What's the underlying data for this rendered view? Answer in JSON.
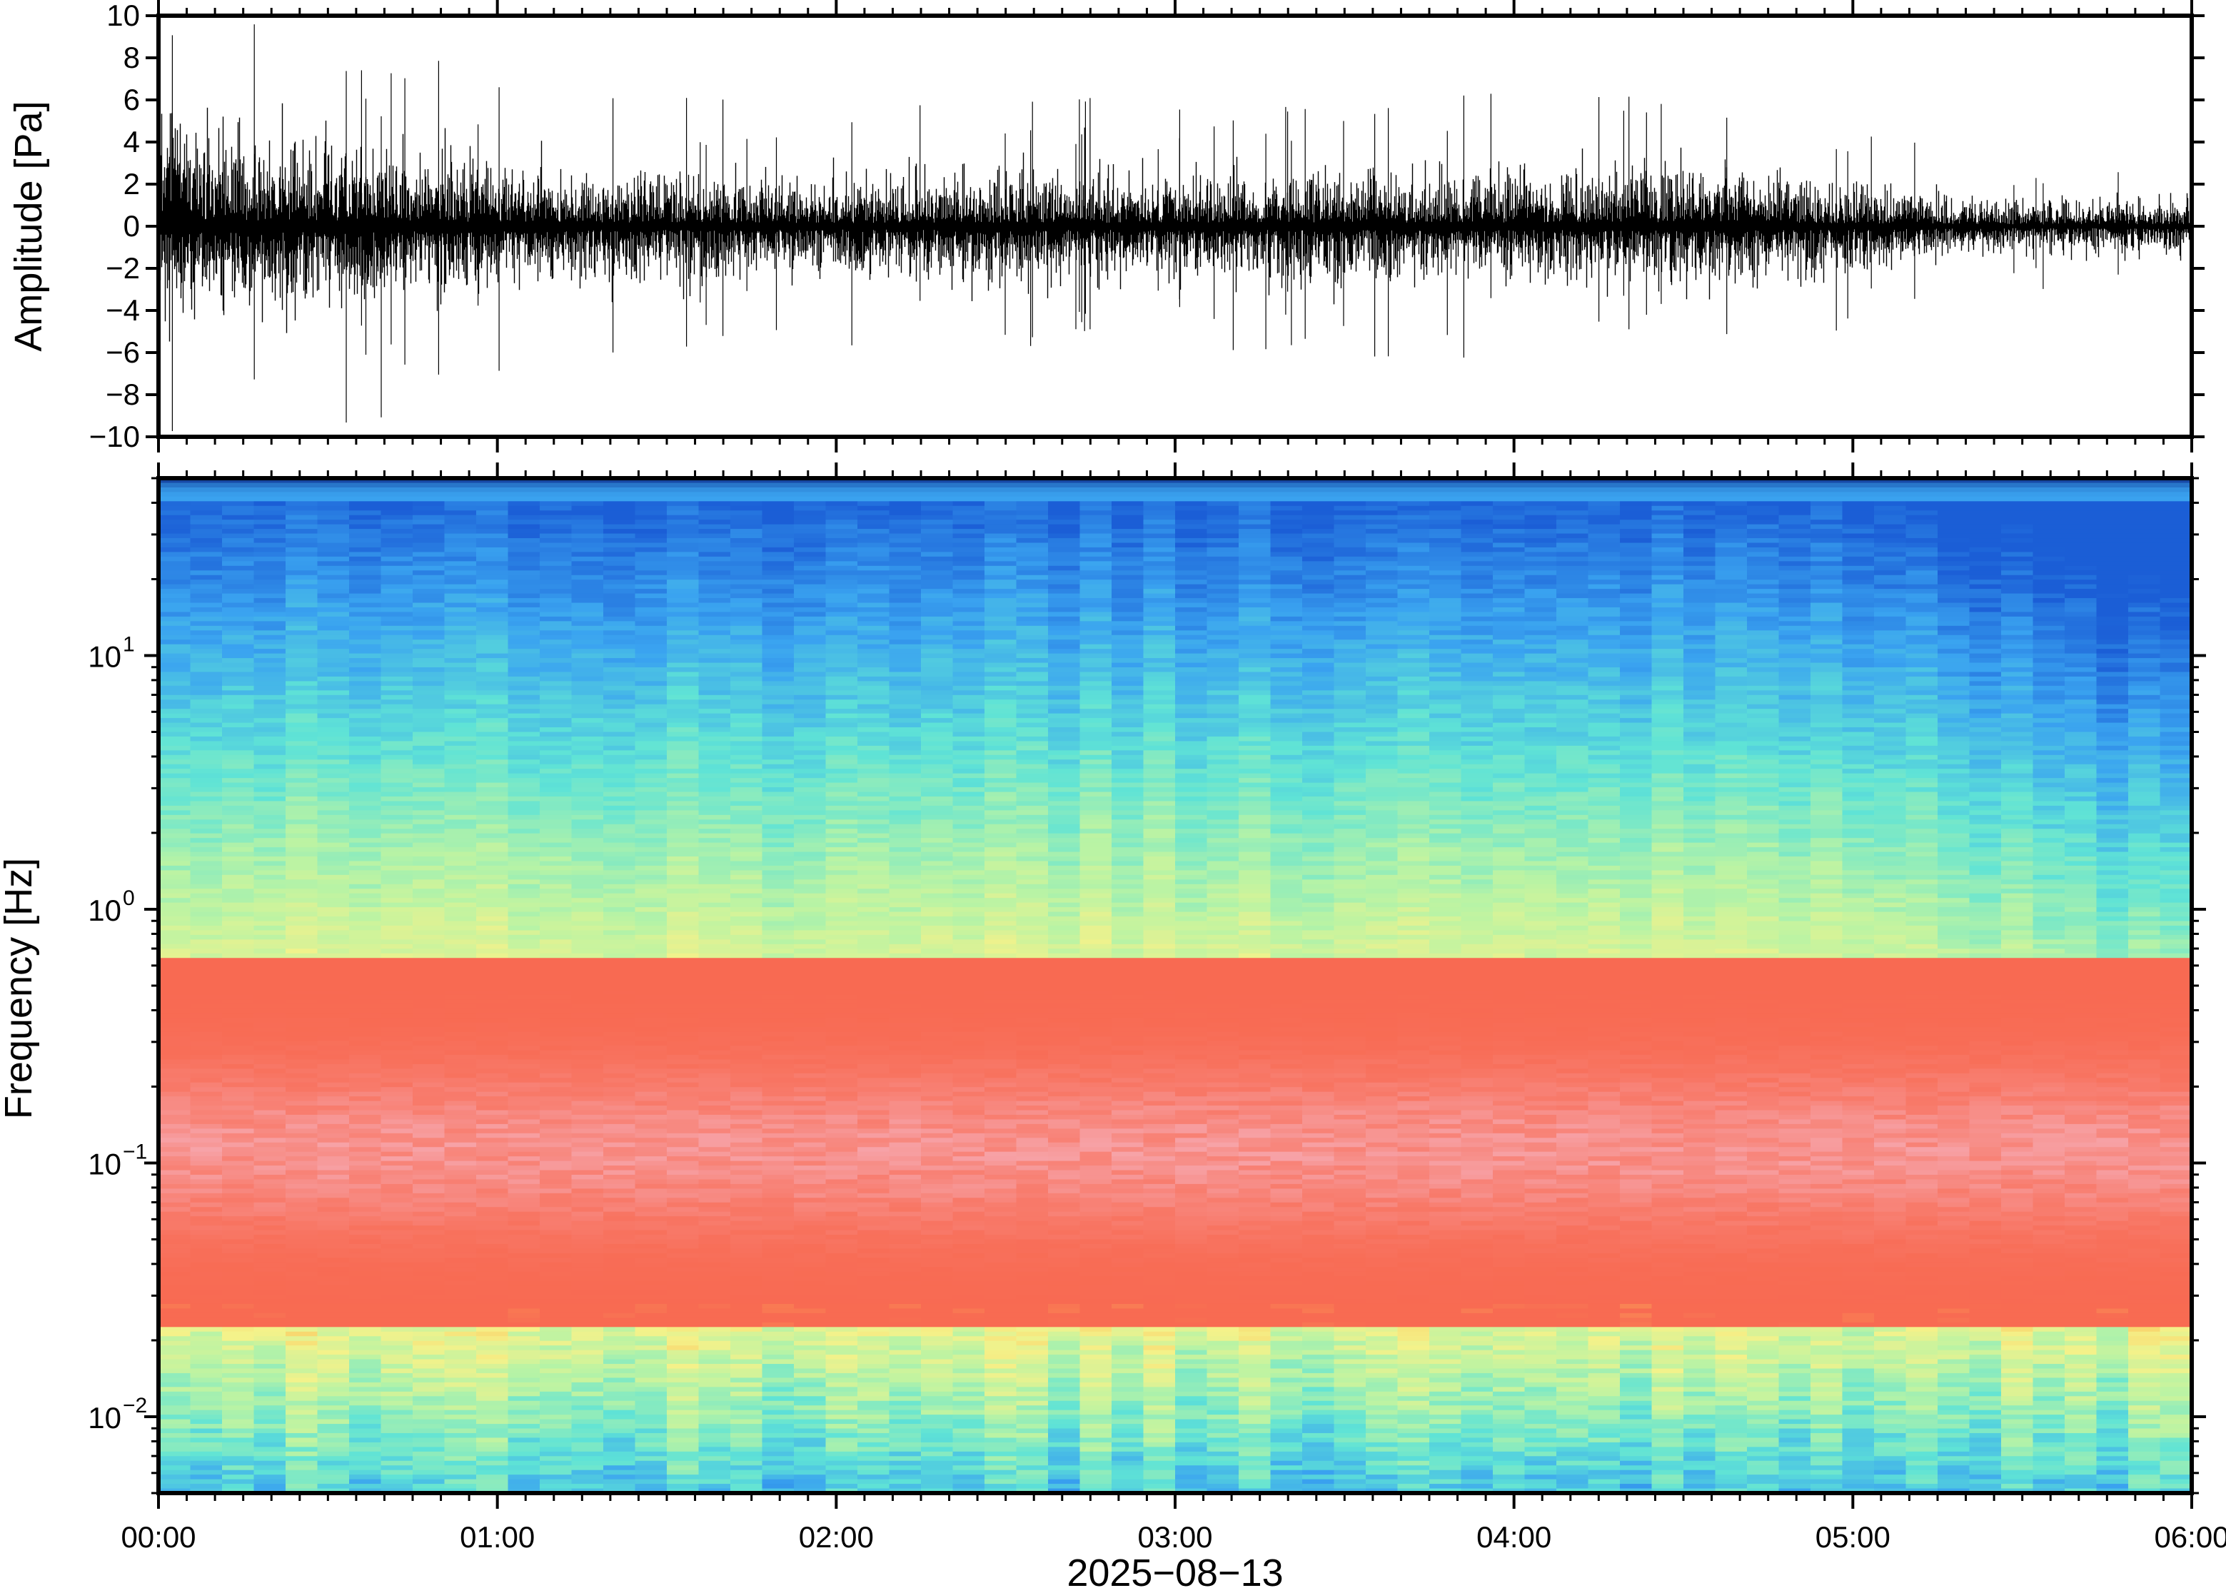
{
  "chart_data": [
    {
      "type": "line",
      "panel": "waveform",
      "ylabel": "Amplitude [Pa]",
      "ylim": [
        -10,
        10
      ],
      "y_ticks": [
        "10",
        "8",
        "6",
        "4",
        "2",
        "0",
        "−2",
        "−4",
        "−6",
        "−8",
        "−10"
      ],
      "y_tick_values": [
        10,
        8,
        6,
        4,
        2,
        0,
        -2,
        -4,
        -6,
        -8,
        -10
      ],
      "xlim": [
        "2025-08-13 00:00",
        "2025-08-13 06:00"
      ],
      "envelope_hours": [
        0,
        0.25,
        0.5,
        0.75,
        1.0,
        1.25,
        1.5,
        1.75,
        2.0,
        2.25,
        2.5,
        2.75,
        3.0,
        3.25,
        3.5,
        3.75,
        4.0,
        4.25,
        4.5,
        4.75,
        5.0,
        5.25,
        5.5,
        5.75,
        6.0
      ],
      "envelope_peak_pa": [
        6.0,
        5.0,
        4.6,
        4.2,
        3.6,
        3.0,
        3.0,
        2.8,
        2.7,
        2.8,
        3.0,
        2.9,
        2.8,
        2.9,
        3.2,
        3.0,
        3.1,
        3.0,
        3.3,
        3.1,
        2.5,
        1.8,
        1.4,
        1.5,
        1.6
      ],
      "grid": false
    },
    {
      "type": "heatmap",
      "panel": "spectrogram",
      "ylabel": "Frequency [Hz]",
      "yscale": "log",
      "ylim": [
        0.005,
        50
      ],
      "y_ticks": [
        "10",
        "10",
        "10",
        "10"
      ],
      "y_tick_exponents": [
        "1",
        "0",
        "−1",
        "−2"
      ],
      "y_tick_values": [
        10,
        1,
        0.1,
        0.01
      ],
      "colormap": [
        "#5fe3d6",
        "#b8f3a5",
        "#f4f28a",
        "#fcc25a",
        "#f86a52",
        "#f7a3a8",
        "#3aa3f0",
        "#0b2a8c"
      ],
      "dominant_band_hz": [
        0.02,
        0.5
      ],
      "grid": false
    }
  ],
  "x_axis": {
    "ticks": [
      "00:00",
      "01:00",
      "02:00",
      "03:00",
      "04:00",
      "05:00",
      "06:00"
    ],
    "tick_hours": [
      0,
      1,
      2,
      3,
      4,
      5,
      6
    ],
    "xlabel": "2025−08−13"
  }
}
